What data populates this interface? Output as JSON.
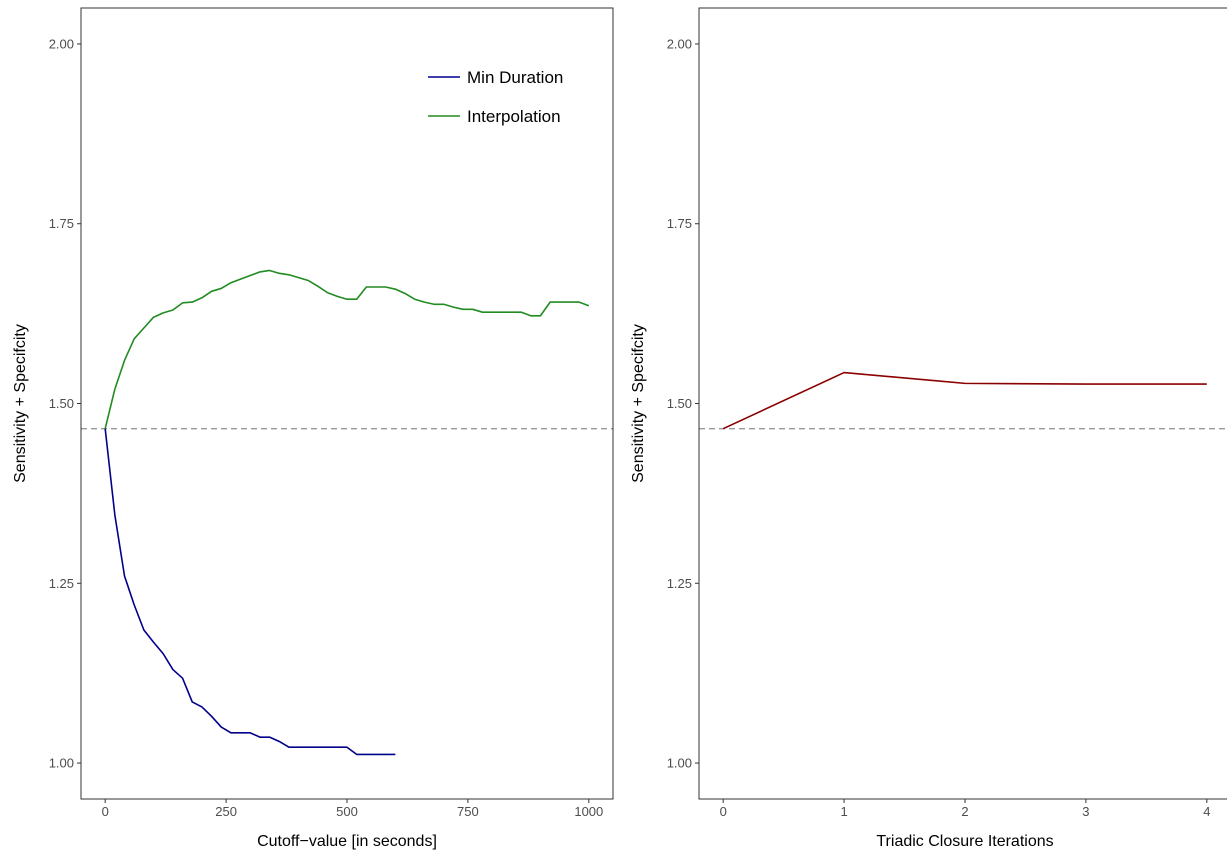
{
  "chart_data": [
    {
      "type": "line",
      "title": "",
      "xlabel": "Cutoff−value [in seconds]",
      "ylabel": "Sensitivity + Specifcity",
      "xlim": [
        -50,
        1050
      ],
      "ylim": [
        0.95,
        2.05
      ],
      "x_ticks": [
        0,
        250,
        500,
        750,
        1000
      ],
      "x_tick_labels": [
        "0",
        "250",
        "500",
        "750",
        "1000"
      ],
      "y_ticks": [
        1.0,
        1.25,
        1.5,
        1.75,
        2.0
      ],
      "y_tick_labels": [
        "1.00",
        "1.25",
        "1.50",
        "1.75",
        "2.00"
      ],
      "grid": false,
      "legend_position": "top-right",
      "reference_line": {
        "y": 1.465,
        "style": "dashed",
        "color": "#999999"
      },
      "series": [
        {
          "name": "Min Duration",
          "color": "#00008B",
          "x": [
            0,
            20,
            40,
            60,
            80,
            100,
            120,
            140,
            160,
            180,
            200,
            220,
            240,
            260,
            280,
            300,
            320,
            340,
            360,
            380,
            400,
            420,
            440,
            460,
            480,
            500,
            520,
            540,
            560,
            580,
            600
          ],
          "y": [
            1.465,
            1.345,
            1.26,
            1.22,
            1.185,
            1.168,
            1.152,
            1.13,
            1.118,
            1.085,
            1.078,
            1.065,
            1.05,
            1.042,
            1.042,
            1.042,
            1.036,
            1.036,
            1.03,
            1.022,
            1.022,
            1.022,
            1.022,
            1.022,
            1.022,
            1.022,
            1.012,
            1.012,
            1.012,
            1.012,
            1.012
          ]
        },
        {
          "name": "Interpolation",
          "color": "#228B22",
          "x": [
            0,
            20,
            40,
            60,
            80,
            100,
            120,
            140,
            160,
            180,
            200,
            220,
            240,
            260,
            280,
            300,
            320,
            340,
            360,
            380,
            400,
            420,
            440,
            460,
            480,
            500,
            520,
            540,
            560,
            580,
            600,
            620,
            640,
            660,
            680,
            700,
            720,
            740,
            760,
            780,
            800,
            820,
            840,
            860,
            880,
            900,
            920,
            940,
            960,
            980,
            1000
          ],
          "y": [
            1.465,
            1.52,
            1.56,
            1.59,
            1.605,
            1.62,
            1.626,
            1.63,
            1.64,
            1.641,
            1.647,
            1.656,
            1.66,
            1.668,
            1.673,
            1.678,
            1.683,
            1.685,
            1.681,
            1.679,
            1.675,
            1.671,
            1.663,
            1.654,
            1.649,
            1.645,
            1.645,
            1.662,
            1.662,
            1.662,
            1.659,
            1.653,
            1.645,
            1.641,
            1.638,
            1.638,
            1.634,
            1.631,
            1.631,
            1.627,
            1.627,
            1.627,
            1.627,
            1.627,
            1.622,
            1.622,
            1.641,
            1.641,
            1.641,
            1.641,
            1.636
          ]
        }
      ]
    },
    {
      "type": "line",
      "title": "",
      "xlabel": "Triadic Closure Iterations",
      "ylabel": "Sensitivity + Specifcity",
      "xlim": [
        -0.2,
        4.2
      ],
      "ylim": [
        0.95,
        2.05
      ],
      "x_ticks": [
        0,
        1,
        2,
        3,
        4
      ],
      "x_tick_labels": [
        "0",
        "1",
        "2",
        "3",
        "4"
      ],
      "y_ticks": [
        1.0,
        1.25,
        1.5,
        1.75,
        2.0
      ],
      "y_tick_labels": [
        "1.00",
        "1.25",
        "1.50",
        "1.75",
        "2.00"
      ],
      "grid": false,
      "reference_line": {
        "y": 1.465,
        "style": "dashed",
        "color": "#999999"
      },
      "series": [
        {
          "color": "#8B0000",
          "x": [
            0,
            1,
            2,
            3,
            4
          ],
          "y": [
            1.465,
            1.543,
            1.528,
            1.527,
            1.527
          ]
        }
      ]
    }
  ]
}
